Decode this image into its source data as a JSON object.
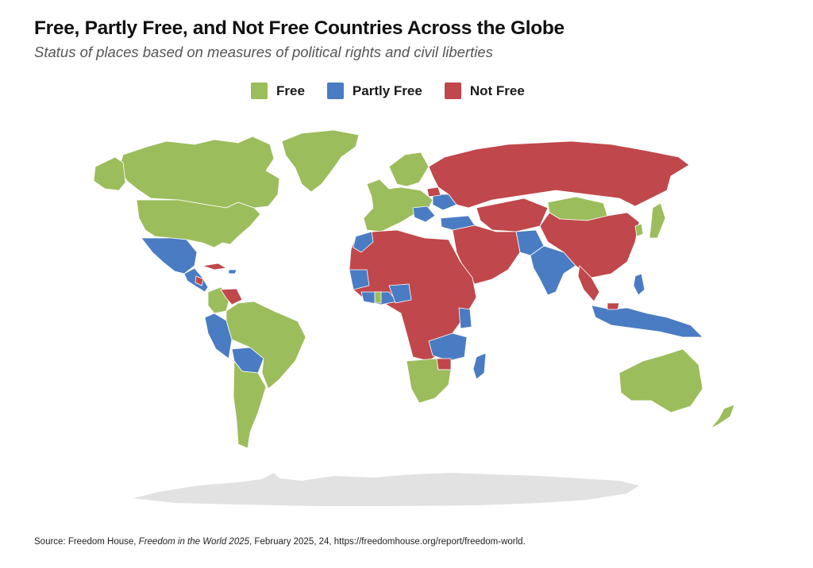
{
  "header": {
    "title": "Free, Partly Free, and Not Free Countries Across the Globe",
    "subtitle": "Status of places based on measures of political rights and civil liberties"
  },
  "legend": {
    "items": [
      {
        "label": "Free",
        "color": "#9cbd5b"
      },
      {
        "label": "Partly Free",
        "color": "#4a7cc4"
      },
      {
        "label": "Not Free",
        "color": "#c0474b"
      }
    ]
  },
  "map": {
    "colors": {
      "free": "#9cbd5b",
      "partly_free": "#4a7cc4",
      "not_free": "#c0474b",
      "no_data": "#e2e2e2",
      "border": "#ffffff"
    }
  },
  "footer": {
    "source_prefix": "Source: Freedom House, ",
    "source_publication": "Freedom in the World 2025",
    "source_suffix": ", February 2025, 24, https://freedomhouse.org/report/freedom-world."
  }
}
